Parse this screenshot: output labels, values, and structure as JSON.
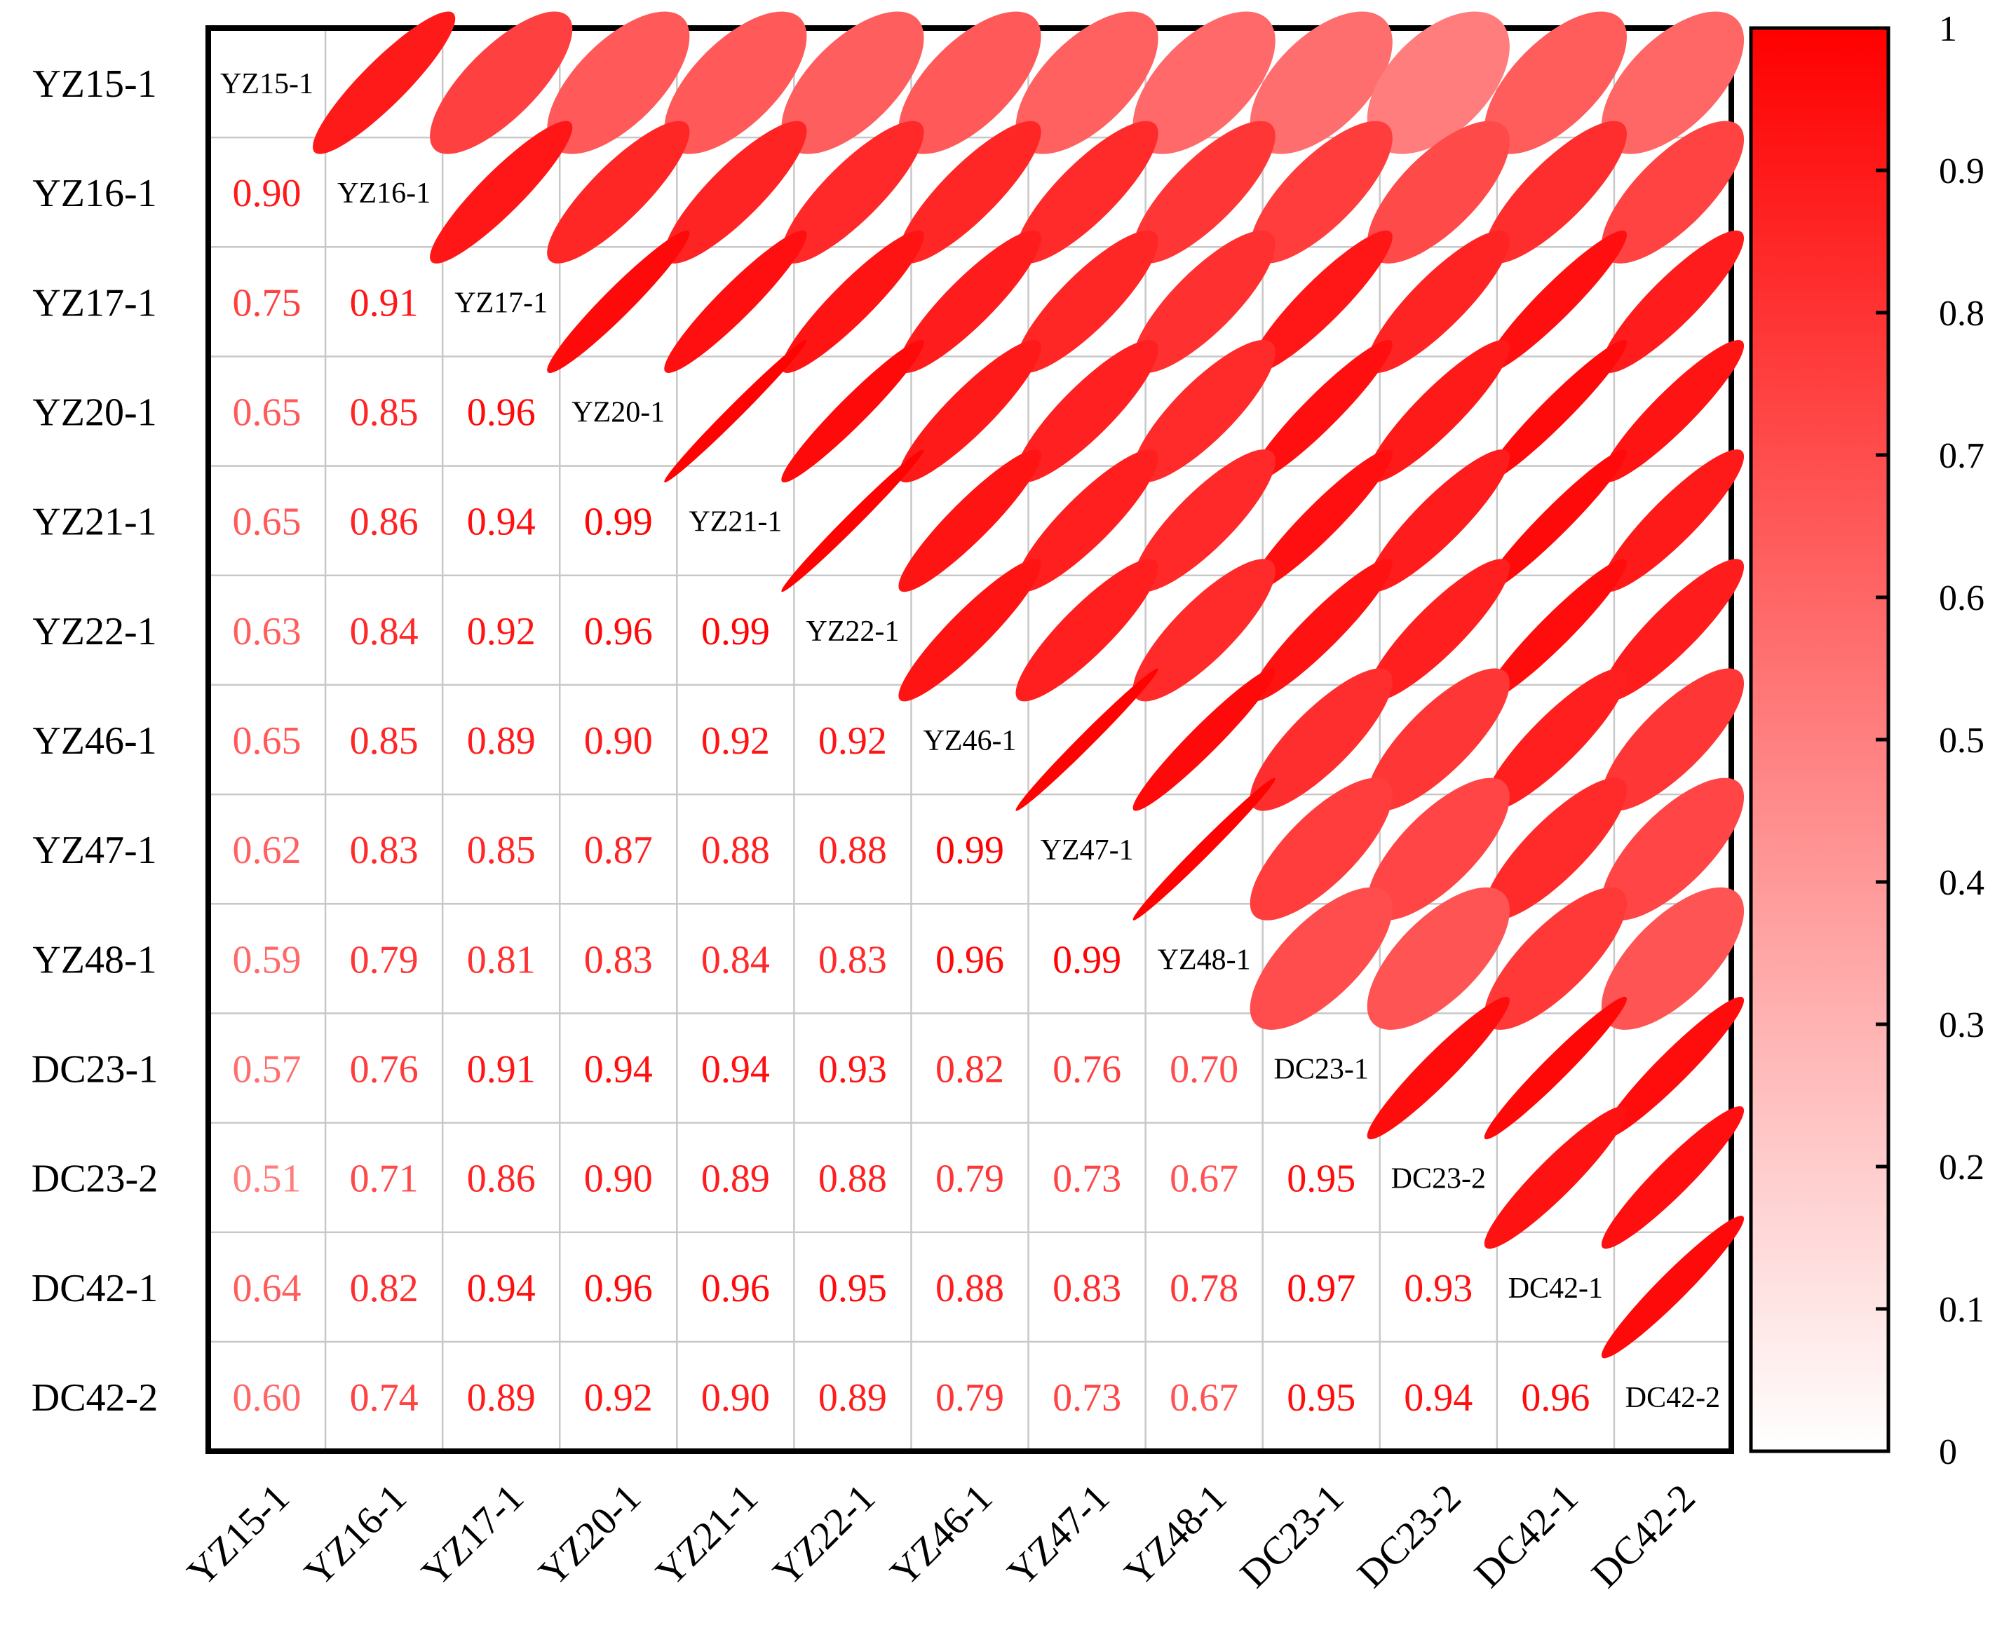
{
  "chart_data": {
    "type": "heatmap",
    "subtype": "correlation-matrix-ellipse",
    "labels": [
      "YZ15-1",
      "YZ16-1",
      "YZ17-1",
      "YZ20-1",
      "YZ21-1",
      "YZ22-1",
      "YZ46-1",
      "YZ47-1",
      "YZ48-1",
      "DC23-1",
      "DC23-2",
      "DC42-1",
      "DC42-2"
    ],
    "lower_triangle": [
      [],
      [
        0.9
      ],
      [
        0.75,
        0.91
      ],
      [
        0.65,
        0.85,
        0.96
      ],
      [
        0.65,
        0.86,
        0.94,
        0.99
      ],
      [
        0.63,
        0.84,
        0.92,
        0.96,
        0.99
      ],
      [
        0.65,
        0.85,
        0.89,
        0.9,
        0.92,
        0.92
      ],
      [
        0.62,
        0.83,
        0.85,
        0.87,
        0.88,
        0.88,
        0.99
      ],
      [
        0.59,
        0.79,
        0.81,
        0.83,
        0.84,
        0.83,
        0.96,
        0.99
      ],
      [
        0.57,
        0.76,
        0.91,
        0.94,
        0.94,
        0.93,
        0.82,
        0.76,
        0.7
      ],
      [
        0.51,
        0.71,
        0.86,
        0.9,
        0.89,
        0.88,
        0.79,
        0.73,
        0.67,
        0.95
      ],
      [
        0.64,
        0.82,
        0.94,
        0.96,
        0.96,
        0.95,
        0.88,
        0.83,
        0.78,
        0.97,
        0.93
      ],
      [
        0.6,
        0.74,
        0.89,
        0.92,
        0.9,
        0.89,
        0.79,
        0.73,
        0.67,
        0.95,
        0.94,
        0.96
      ]
    ],
    "upper_triangle_display": "ellipse",
    "lower_triangle_display": "number",
    "diagonal_display": "label",
    "colorbar": {
      "range": [
        0,
        1
      ],
      "ticks": [
        "0",
        "0.1",
        "0.2",
        "0.3",
        "0.4",
        "0.5",
        "0.6",
        "0.7",
        "0.8",
        "0.9",
        "1"
      ],
      "color_low": "#ffffff",
      "color_high": "#ff0000"
    },
    "grid": true
  }
}
